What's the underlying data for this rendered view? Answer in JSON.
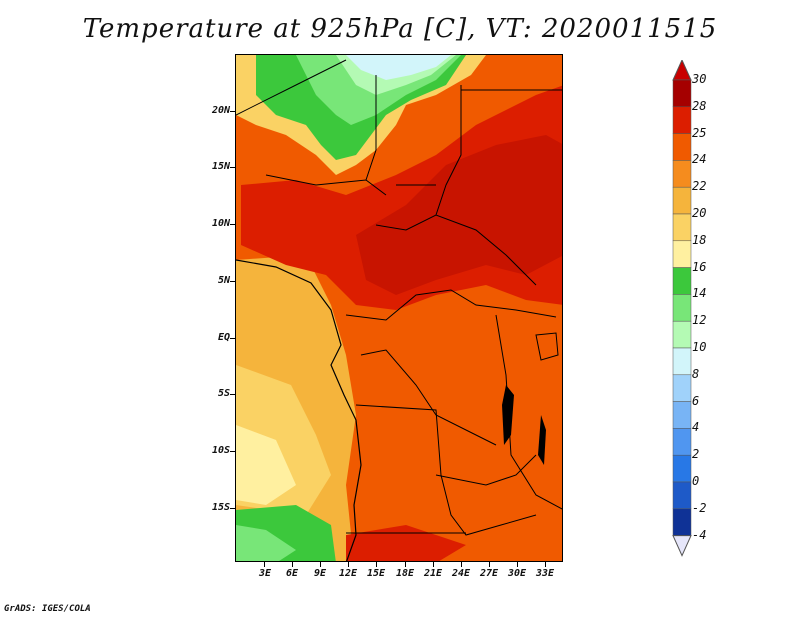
{
  "title": "Temperature at 925hPa [C], VT: 2020011515",
  "footer": "GrADS: IGES/COLA",
  "y_axis_labels": [
    "20N",
    "15N",
    "10N",
    "5N",
    "EQ",
    "5S",
    "10S",
    "15S"
  ],
  "x_axis_labels": [
    "3E",
    "6E",
    "9E",
    "12E",
    "15E",
    "18E",
    "21E",
    "24E",
    "27E",
    "30E",
    "33E"
  ],
  "colorbar": {
    "labels": [
      "30",
      "28",
      "25",
      "24",
      "22",
      "20",
      "18",
      "16",
      "14",
      "12",
      "10",
      "8",
      "6",
      "4",
      "2",
      "0",
      "-2",
      "-4"
    ],
    "colors": [
      "#a50000",
      "#dc1e00",
      "#f05a00",
      "#f58c1e",
      "#f5b43c",
      "#fad264",
      "#fff0a0",
      "#3cc83c",
      "#78e678",
      "#b4fab4",
      "#d2f5fa",
      "#a0d2fa",
      "#78b4f5",
      "#5096f0",
      "#2878e6",
      "#1e5ac8",
      "#0f3296",
      "#000064"
    ],
    "top_color": "#c80000",
    "bottom_color": "#e6e6fa"
  }
}
